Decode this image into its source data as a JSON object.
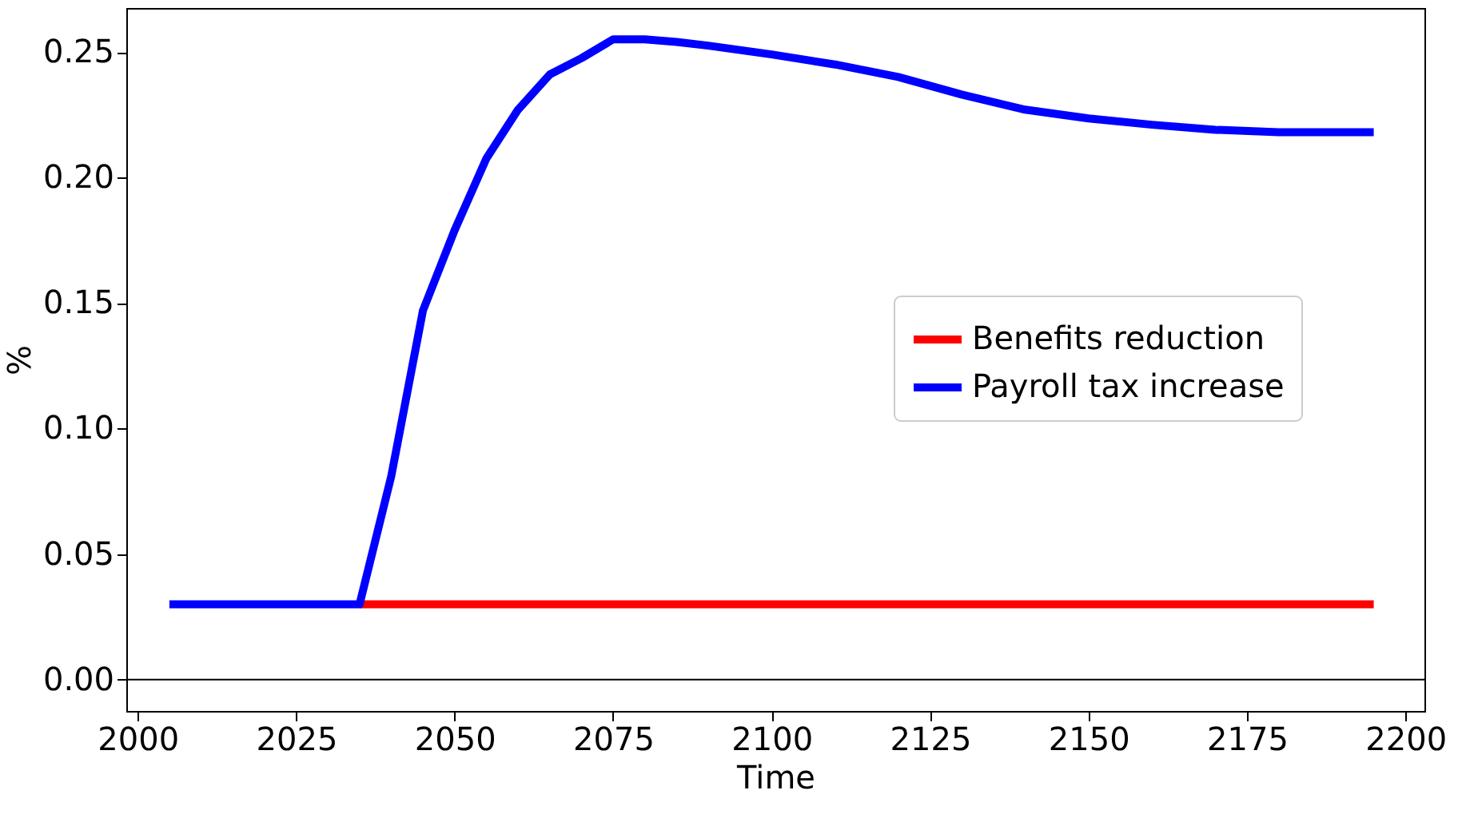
{
  "chart_data": {
    "type": "line",
    "xlabel": "Time",
    "ylabel": "%",
    "xlim": [
      1998.2,
      2203
    ],
    "xticks": [
      2000,
      2025,
      2050,
      2075,
      2100,
      2125,
      2150,
      2175,
      2200
    ],
    "ylim": [
      -0.0125,
      0.2675
    ],
    "yticks": [
      {
        "value": 0,
        "label": "0.00"
      },
      0.05,
      {
        "value": 0.1,
        "label": "0.10"
      },
      0.15,
      {
        "value": 0.2,
        "label": "0.20"
      },
      0.25
    ],
    "grid": false,
    "legend": "right",
    "marker": "none",
    "line_style": "solid",
    "ref_lines": [
      {
        "axis": "y",
        "value": 0,
        "color": "#000000"
      }
    ],
    "series": [
      {
        "name": "Benefits reduction",
        "color": "#ff0000",
        "x": [
          2035,
          2195
        ],
        "values": [
          0.03,
          0.03
        ]
      },
      {
        "name": "Payroll tax increase",
        "color": "#0000ff",
        "x": [
          2005,
          2035,
          2040,
          2045,
          2050,
          2055,
          2060,
          2065,
          2070,
          2075,
          2080,
          2085,
          2090,
          2100,
          2110,
          2120,
          2130,
          2140,
          2150,
          2160,
          2170,
          2180,
          2195
        ],
        "values": [
          0.03,
          0.03,
          0.081,
          0.147,
          0.179,
          0.2075,
          0.227,
          0.241,
          0.2475,
          0.255,
          0.255,
          0.254,
          0.2525,
          0.249,
          0.245,
          0.24,
          0.233,
          0.227,
          0.2235,
          0.221,
          0.219,
          0.218,
          0.218
        ]
      }
    ]
  }
}
